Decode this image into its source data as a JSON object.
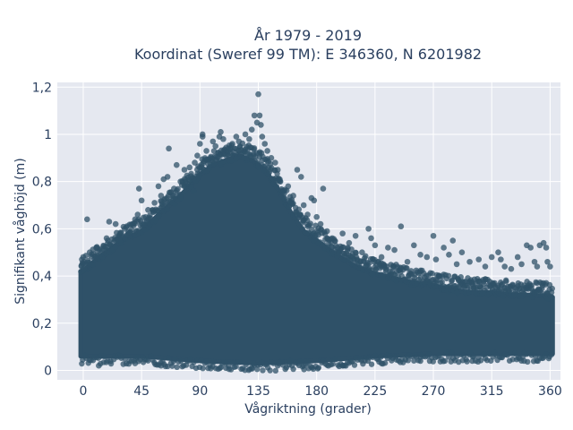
{
  "chart_data": {
    "type": "scatter",
    "title": "År 1979 - 2019",
    "subtitle": "Koordinat (Sweref 99 TM): E 346360, N 6201982",
    "xlabel": "Vågriktning (grader)",
    "ylabel": "Signifikant våghöjd (m)",
    "xlim": [
      -20,
      368
    ],
    "ylim": [
      -0.04,
      1.22
    ],
    "x_ticks": [
      0,
      45,
      90,
      135,
      180,
      225,
      270,
      315,
      360
    ],
    "x_tick_labels": [
      "0",
      "45",
      "90",
      "135",
      "180",
      "225",
      "270",
      "315",
      "360"
    ],
    "y_ticks": [
      0,
      0.2,
      0.4,
      0.6,
      0.8,
      1,
      1.2
    ],
    "y_tick_labels": [
      "0",
      "0,2",
      "0,4",
      "0,6",
      "0,8",
      "1",
      "1,2"
    ],
    "grid": true,
    "marker_color": "#2f5168",
    "plot_background": "#e5e8f0",
    "grid_color": "#ffffff",
    "upper_envelope": [
      [
        0,
        0.43
      ],
      [
        10,
        0.48
      ],
      [
        20,
        0.52
      ],
      [
        30,
        0.56
      ],
      [
        45,
        0.6
      ],
      [
        60,
        0.68
      ],
      [
        75,
        0.75
      ],
      [
        90,
        0.84
      ],
      [
        100,
        0.88
      ],
      [
        110,
        0.9
      ],
      [
        120,
        0.92
      ],
      [
        130,
        0.9
      ],
      [
        140,
        0.86
      ],
      [
        150,
        0.78
      ],
      [
        160,
        0.68
      ],
      [
        170,
        0.6
      ],
      [
        180,
        0.56
      ],
      [
        195,
        0.5
      ],
      [
        210,
        0.45
      ],
      [
        225,
        0.42
      ],
      [
        240,
        0.4
      ],
      [
        255,
        0.38
      ],
      [
        270,
        0.37
      ],
      [
        285,
        0.35
      ],
      [
        300,
        0.34
      ],
      [
        315,
        0.34
      ],
      [
        330,
        0.33
      ],
      [
        345,
        0.33
      ],
      [
        360,
        0.32
      ]
    ],
    "lower_envelope": [
      [
        0,
        0.05
      ],
      [
        45,
        0.05
      ],
      [
        90,
        0.03
      ],
      [
        135,
        0.02
      ],
      [
        180,
        0.03
      ],
      [
        225,
        0.05
      ],
      [
        270,
        0.06
      ],
      [
        315,
        0.06
      ],
      [
        360,
        0.06
      ]
    ],
    "scattered_points": [
      [
        -1,
        0.47
      ],
      [
        0,
        0.48
      ],
      [
        1,
        0.43
      ],
      [
        3,
        0.64
      ],
      [
        5,
        0.5
      ],
      [
        10,
        0.52
      ],
      [
        18,
        0.56
      ],
      [
        20,
        0.63
      ],
      [
        25,
        0.62
      ],
      [
        28,
        0.55
      ],
      [
        32,
        0.6
      ],
      [
        38,
        0.62
      ],
      [
        40,
        0.64
      ],
      [
        42,
        0.66
      ],
      [
        43,
        0.77
      ],
      [
        45,
        0.72
      ],
      [
        50,
        0.68
      ],
      [
        55,
        0.71
      ],
      [
        58,
        0.78
      ],
      [
        60,
        0.74
      ],
      [
        62,
        0.81
      ],
      [
        65,
        0.82
      ],
      [
        66,
        0.94
      ],
      [
        70,
        0.77
      ],
      [
        72,
        0.87
      ],
      [
        75,
        0.8
      ],
      [
        78,
        0.85
      ],
      [
        80,
        0.79
      ],
      [
        82,
        0.86
      ],
      [
        85,
        0.76
      ],
      [
        86,
        0.88
      ],
      [
        88,
        0.91
      ],
      [
        90,
        0.96
      ],
      [
        92,
        0.99
      ],
      [
        92,
        1.0
      ],
      [
        95,
        0.93
      ],
      [
        98,
        0.9
      ],
      [
        100,
        0.97
      ],
      [
        102,
        0.95
      ],
      [
        105,
        0.99
      ],
      [
        106,
        1.01
      ],
      [
        108,
        0.98
      ],
      [
        110,
        0.91
      ],
      [
        112,
        0.94
      ],
      [
        114,
        0.89
      ],
      [
        115,
        0.96
      ],
      [
        118,
        0.99
      ],
      [
        120,
        0.97
      ],
      [
        124,
        0.9
      ],
      [
        125,
        1.0
      ],
      [
        128,
        0.98
      ],
      [
        130,
        1.02
      ],
      [
        132,
        1.08
      ],
      [
        134,
        1.05
      ],
      [
        135,
        1.17
      ],
      [
        136,
        1.08
      ],
      [
        137,
        1.04
      ],
      [
        138,
        0.99
      ],
      [
        140,
        0.96
      ],
      [
        142,
        0.93
      ],
      [
        145,
        0.9
      ],
      [
        148,
        0.88
      ],
      [
        150,
        0.85
      ],
      [
        152,
        0.8
      ],
      [
        155,
        0.75
      ],
      [
        158,
        0.78
      ],
      [
        160,
        0.71
      ],
      [
        162,
        0.74
      ],
      [
        165,
        0.85
      ],
      [
        168,
        0.82
      ],
      [
        170,
        0.7
      ],
      [
        173,
        0.66
      ],
      [
        176,
        0.73
      ],
      [
        178,
        0.72
      ],
      [
        180,
        0.65
      ],
      [
        183,
        0.62
      ],
      [
        185,
        0.77
      ],
      [
        188,
        0.59
      ],
      [
        192,
        0.56
      ],
      [
        196,
        0.52
      ],
      [
        200,
        0.58
      ],
      [
        205,
        0.54
      ],
      [
        210,
        0.57
      ],
      [
        215,
        0.5
      ],
      [
        220,
        0.6
      ],
      [
        222,
        0.56
      ],
      [
        225,
        0.53
      ],
      [
        230,
        0.48
      ],
      [
        235,
        0.52
      ],
      [
        240,
        0.51
      ],
      [
        245,
        0.61
      ],
      [
        250,
        0.46
      ],
      [
        255,
        0.53
      ],
      [
        260,
        0.49
      ],
      [
        265,
        0.48
      ],
      [
        270,
        0.57
      ],
      [
        272,
        0.47
      ],
      [
        278,
        0.52
      ],
      [
        282,
        0.49
      ],
      [
        285,
        0.55
      ],
      [
        288,
        0.45
      ],
      [
        292,
        0.5
      ],
      [
        298,
        0.46
      ],
      [
        305,
        0.47
      ],
      [
        310,
        0.44
      ],
      [
        315,
        0.48
      ],
      [
        320,
        0.5
      ],
      [
        322,
        0.47
      ],
      [
        325,
        0.44
      ],
      [
        330,
        0.43
      ],
      [
        335,
        0.48
      ],
      [
        338,
        0.45
      ],
      [
        342,
        0.53
      ],
      [
        345,
        0.52
      ],
      [
        348,
        0.46
      ],
      [
        350,
        0.44
      ],
      [
        352,
        0.53
      ],
      [
        355,
        0.54
      ],
      [
        357,
        0.52
      ],
      [
        358,
        0.46
      ],
      [
        360,
        0.44
      ],
      [
        12,
        0.02
      ],
      [
        40,
        0.03
      ],
      [
        60,
        0.02
      ],
      [
        110,
        0.01
      ],
      [
        130,
        0.01
      ],
      [
        150,
        0.02
      ],
      [
        170,
        0.02
      ],
      [
        200,
        0.02
      ],
      [
        230,
        0.03
      ],
      [
        260,
        0.04
      ],
      [
        300,
        0.04
      ],
      [
        340,
        0.04
      ]
    ]
  }
}
